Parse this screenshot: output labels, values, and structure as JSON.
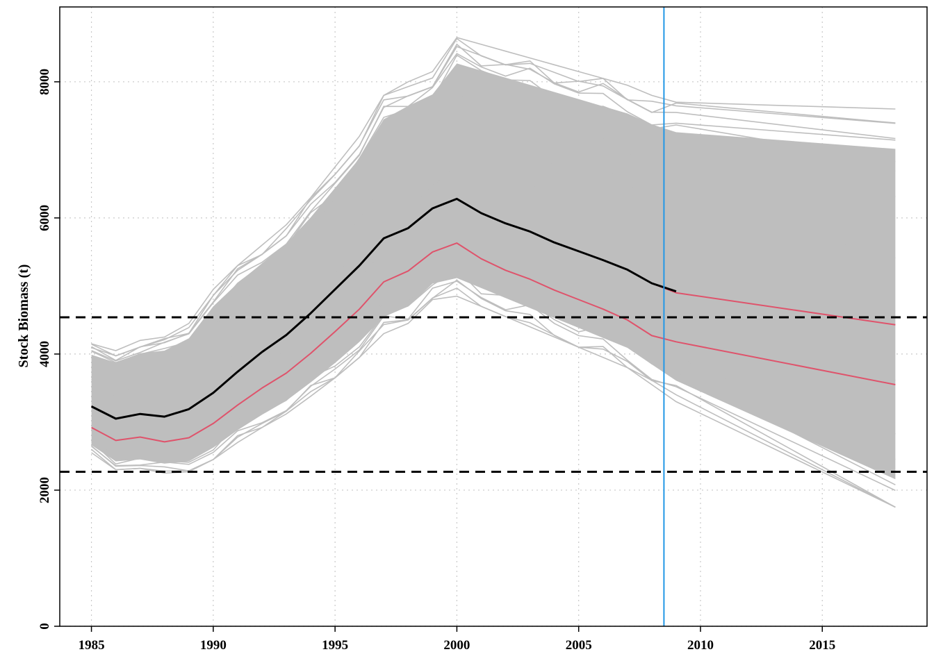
{
  "chart_data": {
    "type": "line",
    "title": "",
    "xlabel": "",
    "ylabel": "Stock Biomass (t)",
    "xlim": [
      1983.7,
      2019.3
    ],
    "ylim": [
      0,
      9100
    ],
    "x_ticks": [
      1985,
      1990,
      1995,
      2000,
      2005,
      2010,
      2015
    ],
    "x_tick_labels": [
      "1985",
      "1990",
      "1995",
      "2000",
      "2005",
      "2010",
      "2015"
    ],
    "y_ticks": [
      0,
      2000,
      4000,
      6000,
      8000
    ],
    "y_tick_labels": [
      "0",
      "2000",
      "4000",
      "6000",
      "8000"
    ],
    "grid": true,
    "colors": {
      "simulations": "#bebebe",
      "estimate": "#000000",
      "quantiles": "#df536b",
      "reference": "#000000",
      "current_year": "#2297e6",
      "grid": "#c8c8c8"
    },
    "historic_years": [
      1985,
      1986,
      1987,
      1988,
      1989,
      1990,
      1991,
      1992,
      1993,
      1994,
      1995,
      1996,
      1997,
      1998,
      1999,
      2000,
      2001,
      2002,
      2003,
      2004,
      2005,
      2006,
      2007,
      2008,
      2009
    ],
    "projection_years": [
      2009,
      2018
    ],
    "envelope": {
      "upper_hist": [
        4150,
        4050,
        4200,
        4250,
        4450,
        4950,
        5300,
        5600,
        5900,
        6300,
        6750,
        7200,
        7800,
        8000,
        8150,
        8650,
        8550,
        8450,
        8350,
        8250,
        8150,
        8050,
        7950,
        7800,
        7700
      ],
      "lower_hist": [
        2550,
        2300,
        2320,
        2250,
        2270,
        2450,
        2700,
        2920,
        3120,
        3380,
        3650,
        3950,
        4300,
        4450,
        4800,
        4850,
        4700,
        4550,
        4400,
        4250,
        4100,
        3950,
        3800,
        3550,
        3300
      ],
      "upper_proj_end": 7600,
      "lower_proj_end": 1750
    },
    "series": [
      {
        "name": "",
        "x": [
          1985,
          1986,
          1987,
          1988,
          1989,
          1990,
          1991,
          1992,
          1993,
          1994,
          1995,
          1996,
          1997,
          1998,
          1999,
          2000,
          2001,
          2002,
          2003,
          2004,
          2005,
          2006,
          2007,
          2008,
          2009
        ],
        "values": [
          3230,
          3050,
          3120,
          3080,
          3190,
          3430,
          3740,
          4030,
          4280,
          4600,
          4950,
          5300,
          5700,
          5850,
          6140,
          6280,
          6070,
          5920,
          5800,
          5640,
          5510,
          5380,
          5240,
          5040,
          4920
        ]
      },
      {
        "name": "",
        "x": [
          1985,
          1986,
          1987,
          1988,
          1989,
          1990,
          1991,
          1992,
          1993,
          1994,
          1995,
          1996,
          1997,
          1998,
          1999,
          2000,
          2001,
          2002,
          2003,
          2004,
          2005,
          2006,
          2007,
          2008,
          2009,
          2018
        ],
        "values": [
          2920,
          2730,
          2780,
          2710,
          2770,
          2980,
          3250,
          3500,
          3720,
          4010,
          4330,
          4660,
          5060,
          5220,
          5500,
          5630,
          5400,
          5230,
          5100,
          4940,
          4800,
          4660,
          4500,
          4270,
          4180,
          3550
        ]
      },
      {
        "name": "",
        "x": [
          1985,
          1986,
          1987,
          1988,
          1989,
          1990,
          1991,
          1992,
          1993,
          1994,
          1995,
          1996,
          1997,
          1998,
          1999,
          2000,
          2001,
          2002,
          2003,
          2004,
          2005,
          2006,
          2007,
          2008,
          2009,
          2018
        ],
        "values": [
          3230,
          3050,
          3120,
          3080,
          3190,
          3430,
          3740,
          4030,
          4280,
          4600,
          4950,
          5300,
          5700,
          5850,
          6140,
          6280,
          6070,
          5920,
          5800,
          5640,
          5510,
          5380,
          5240,
          5040,
          4900,
          4430
        ]
      }
    ],
    "reference_lines": [
      4540,
      2270
    ],
    "current_year_marker": 2008.5
  }
}
